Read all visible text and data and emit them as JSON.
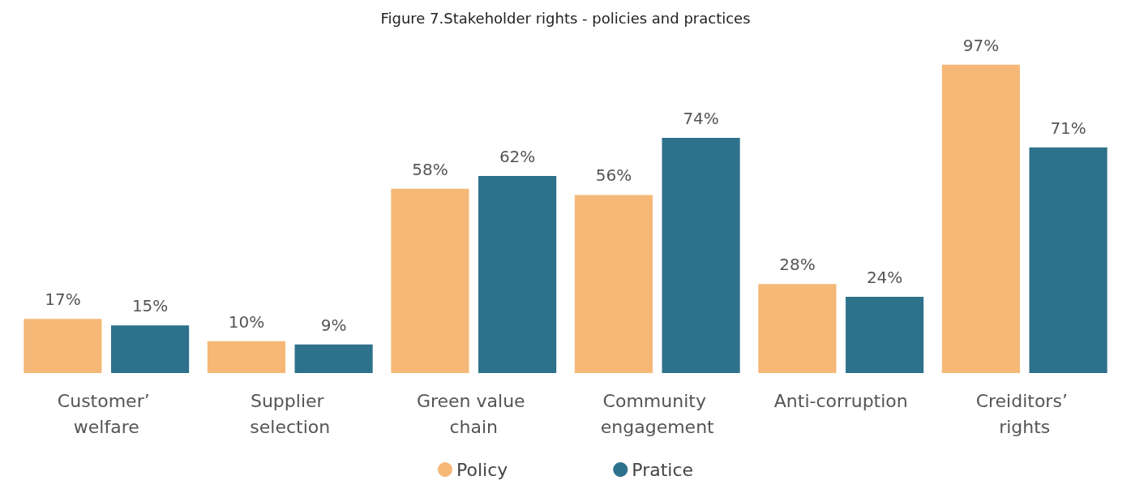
{
  "chart_data": {
    "type": "bar",
    "title": "Figure 7.Stakeholder rights - policies and practices",
    "categories": [
      "Customer’ welfare",
      "Supplier selection",
      "Green value chain",
      "Community engagement",
      "Anti-corruption",
      "Creiditors’ rights"
    ],
    "series": [
      {
        "name": "Policy",
        "color": "#f5b877",
        "values": [
          17,
          10,
          58,
          56,
          28,
          97
        ],
        "value_labels": [
          "17%",
          "10%",
          "58%",
          "56%",
          "28%",
          "97%"
        ]
      },
      {
        "name": "Pratice",
        "color": "#2e718b",
        "values": [
          15,
          9,
          62,
          74,
          24,
          71
        ],
        "value_labels": [
          "15%",
          "9%",
          "62%",
          "74%",
          "24%",
          "71%"
        ]
      }
    ],
    "legend": "bottom",
    "marker": "circle"
  }
}
